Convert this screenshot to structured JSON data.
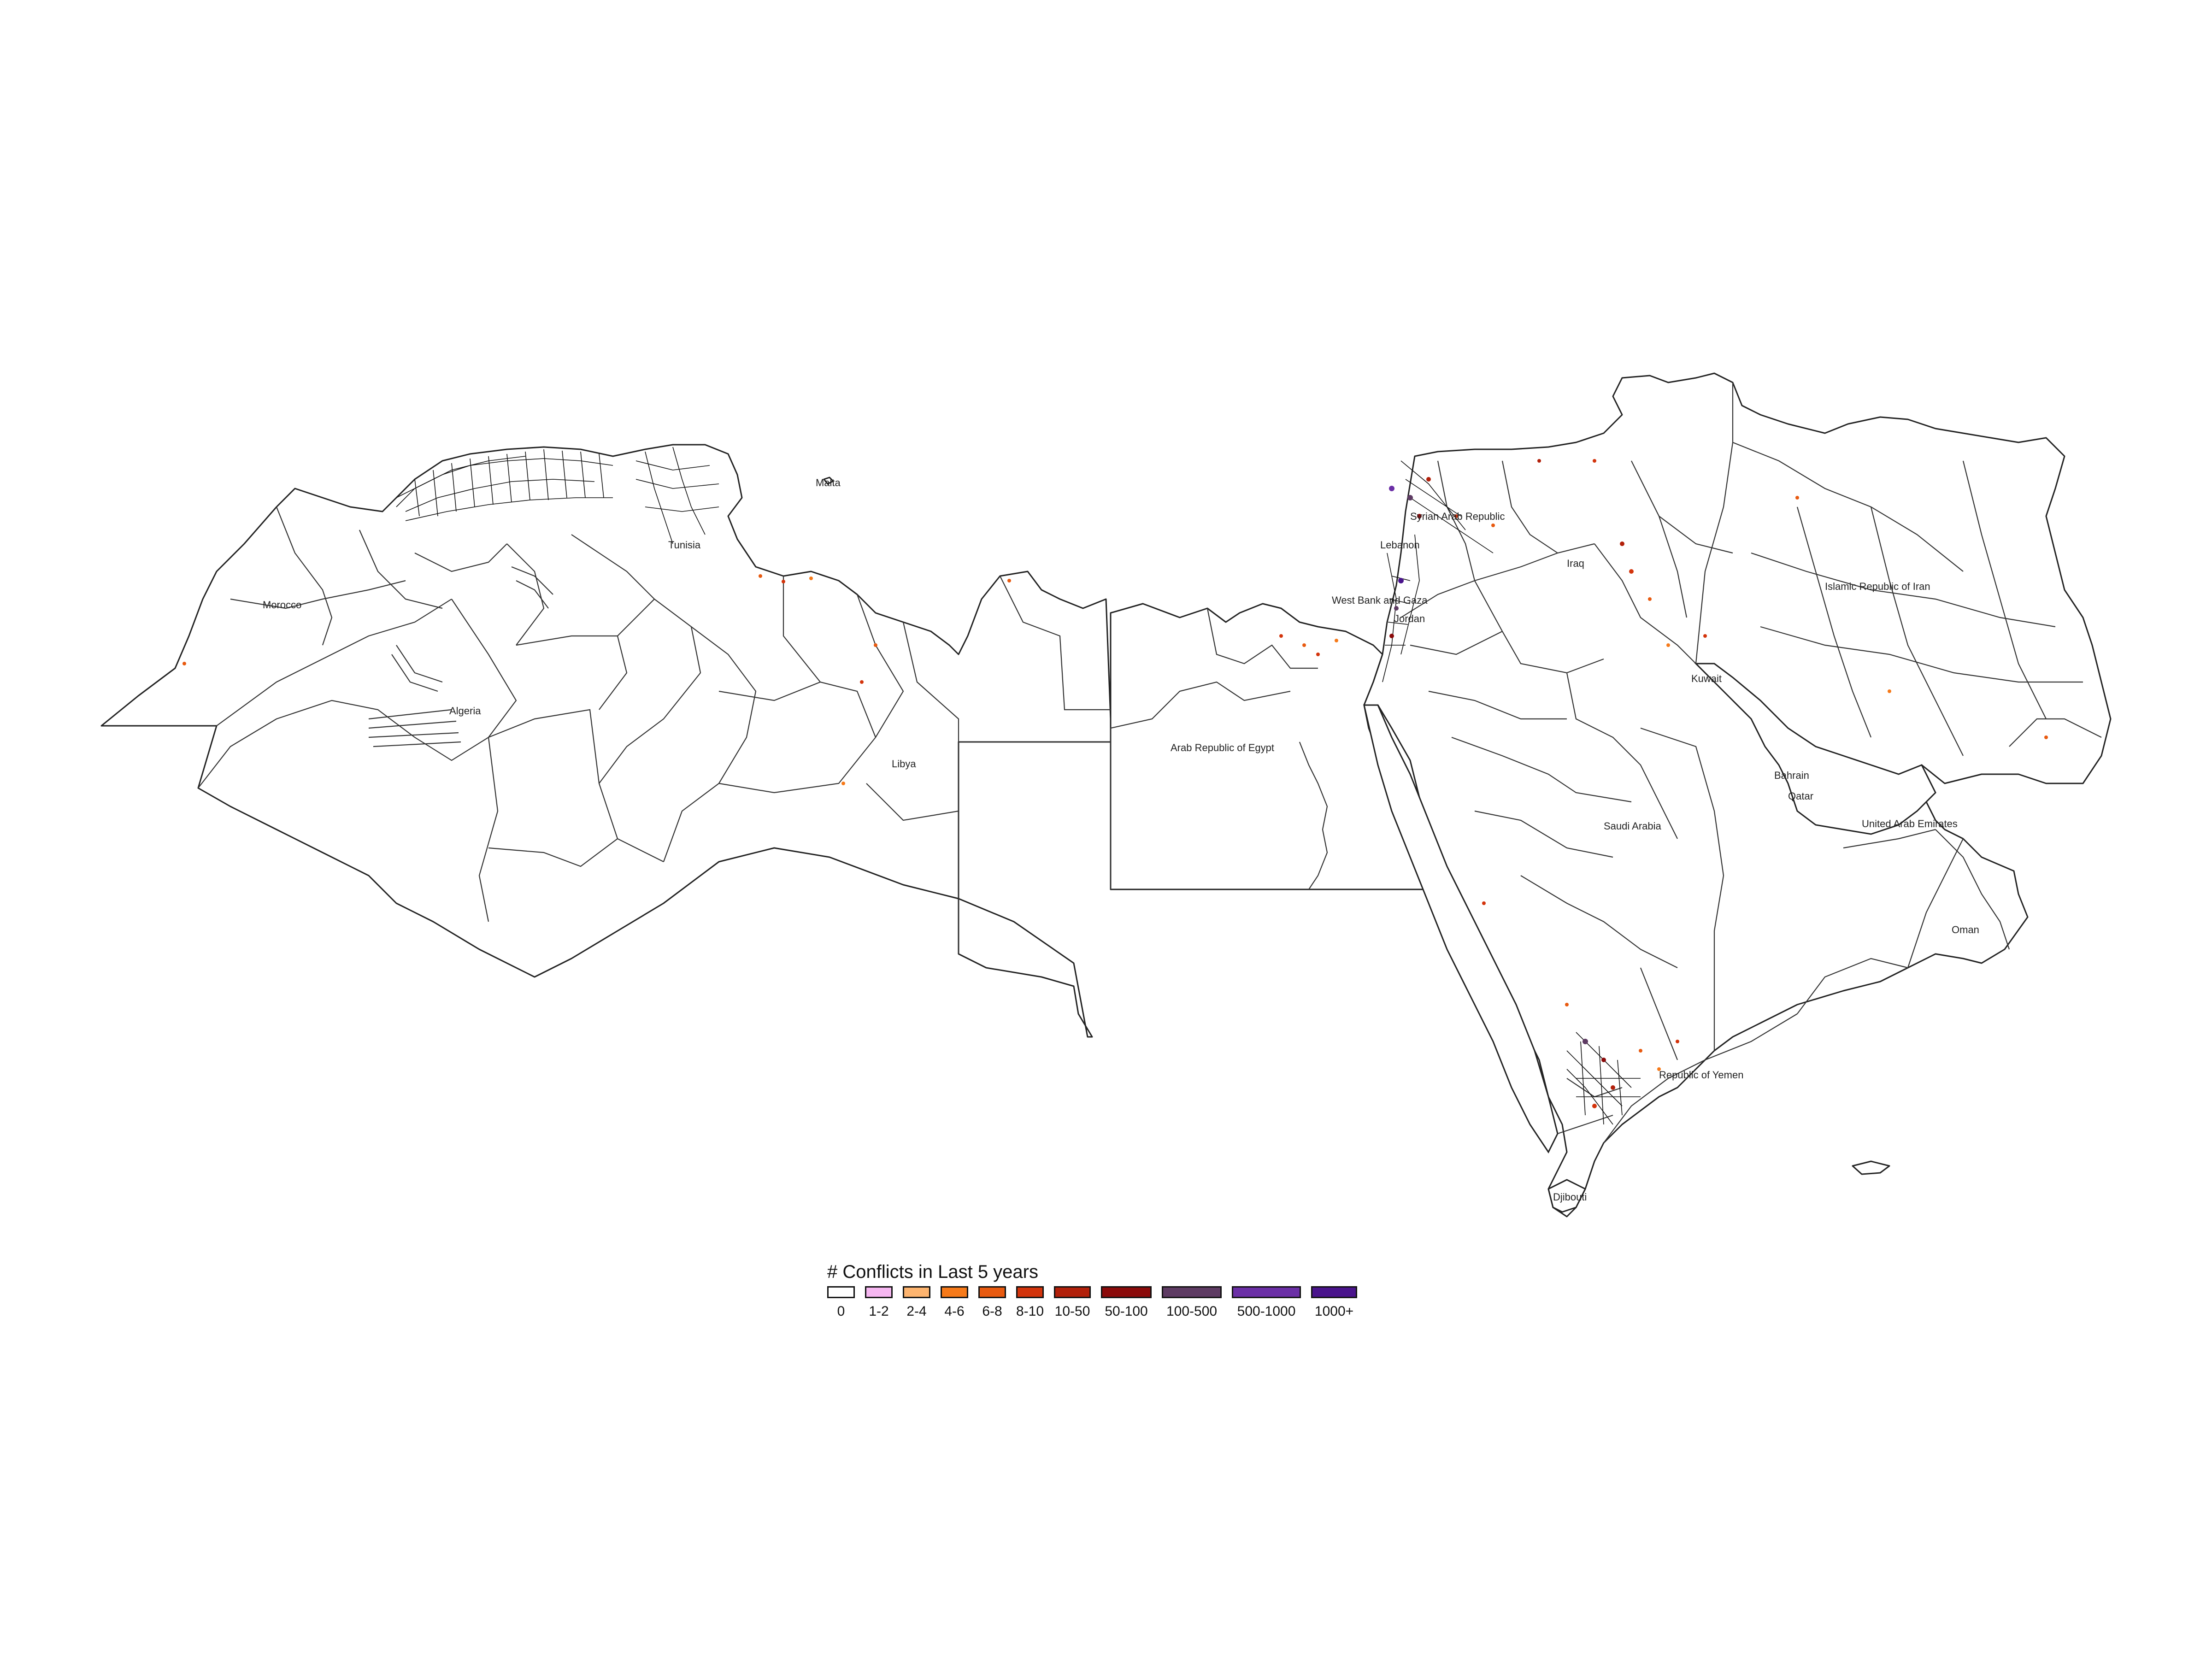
{
  "legend": {
    "title": "# Conflicts in Last 5 years",
    "bins": [
      {
        "label": "0",
        "color": "#ffffff"
      },
      {
        "label": "1-2",
        "color": "#f5b6f0"
      },
      {
        "label": "2-4",
        "color": "#fdb46f"
      },
      {
        "label": "4-6",
        "color": "#f67a1a"
      },
      {
        "label": "6-8",
        "color": "#e85a10"
      },
      {
        "label": "8-10",
        "color": "#d3340c"
      },
      {
        "label": "10-50",
        "color": "#b2200a"
      },
      {
        "label": "50-100",
        "color": "#8b0a0a"
      },
      {
        "label": "100-500",
        "color": "#5e3b63"
      },
      {
        "label": "500-1000",
        "color": "#6b2fa6"
      },
      {
        "label": "1000+",
        "color": "#4a148c"
      }
    ]
  },
  "country_labels": {
    "morocco": "Morocco",
    "algeria": "Algeria",
    "tunisia": "Tunisia",
    "libya": "Libya",
    "malta": "Malta",
    "egypt": "Arab Republic of Egypt",
    "syria": "Syrian Arab Republic",
    "lebanon": "Lebanon",
    "west_bank": "West Bank and Gaza",
    "jordan": "Jordan",
    "iraq": "Iraq",
    "iran": "Islamic Republic of Iran",
    "kuwait": "Kuwait",
    "bahrain": "Bahrain",
    "qatar": "Qatar",
    "saudi": "Saudi Arabia",
    "uae": "United Arab Emirates",
    "oman": "Oman",
    "yemen": "Republic of Yemen",
    "djibouti": "Djibouti"
  }
}
